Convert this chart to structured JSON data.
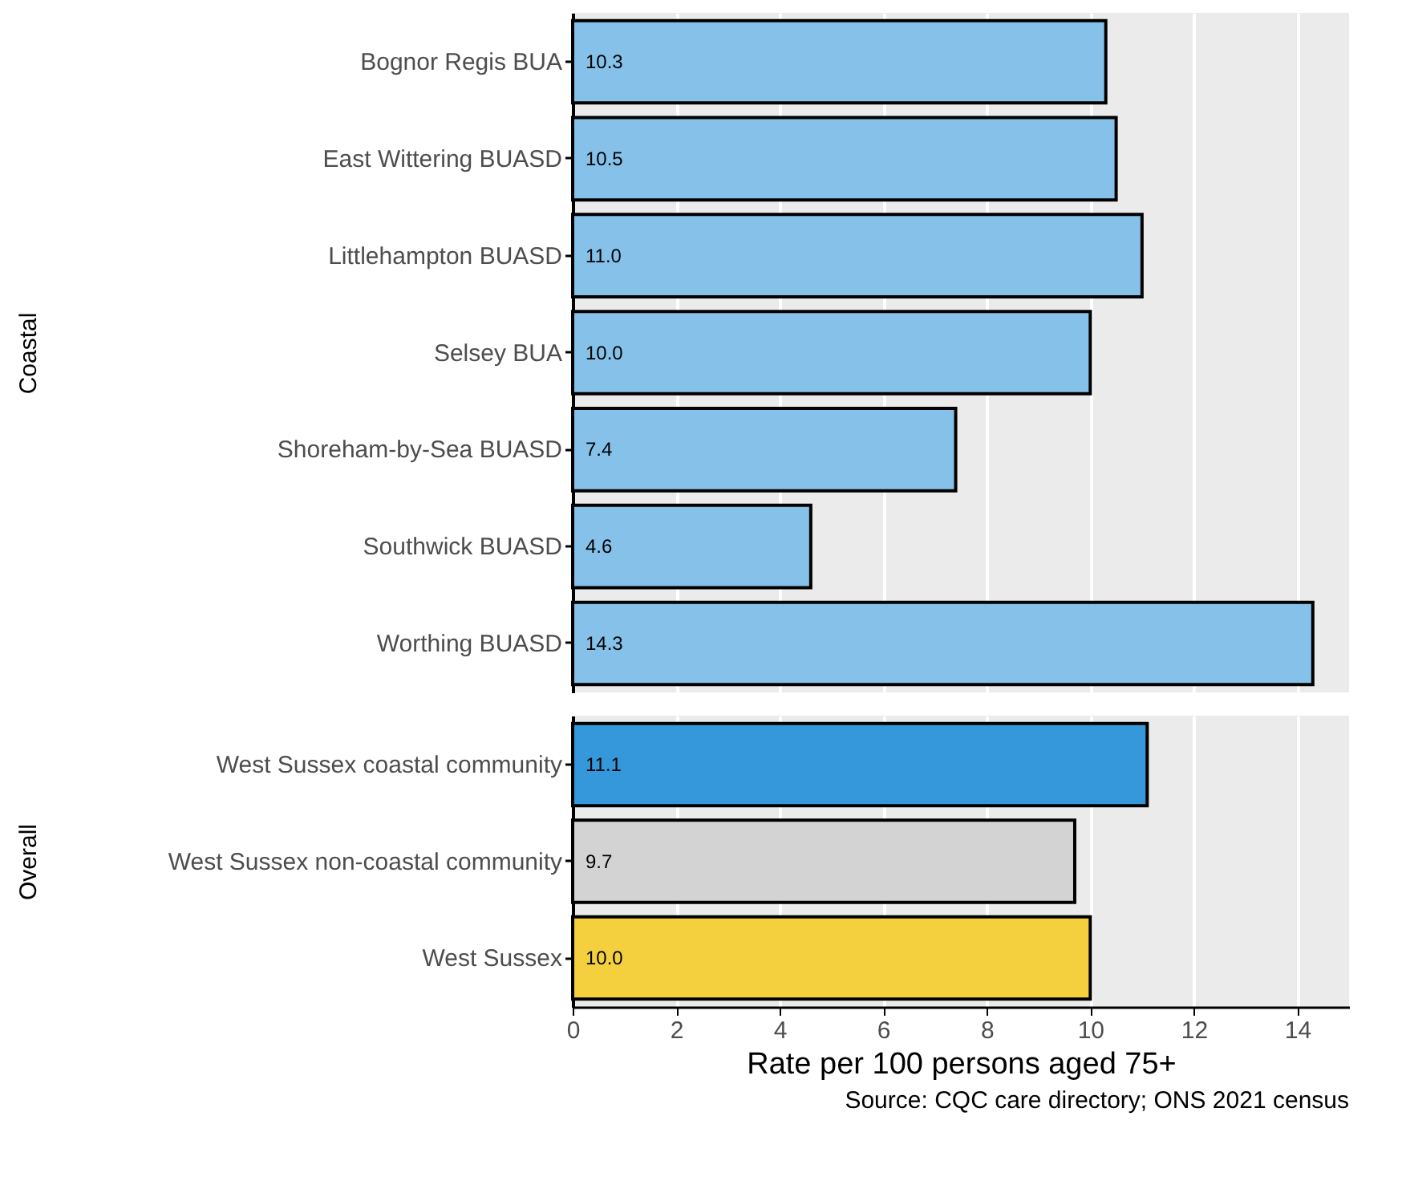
{
  "chart_data": [
    {
      "type": "bar",
      "orientation": "horizontal",
      "ylabel": "Coastal",
      "categories": [
        "Bognor Regis BUA",
        "East Wittering BUASD",
        "Littlehampton BUASD",
        "Selsey BUA",
        "Shoreham-by-Sea BUASD",
        "Southwick BUASD",
        "Worthing BUASD"
      ],
      "values": [
        10.3,
        10.5,
        11.0,
        10.0,
        7.4,
        4.6,
        14.3
      ],
      "value_labels": [
        "10.3",
        "10.5",
        "11.0",
        "10.0",
        "7.4",
        "4.6",
        "14.3"
      ],
      "color": "#85c1e9",
      "xlim": [
        0,
        15
      ],
      "xticks": [
        0,
        2,
        4,
        6,
        8,
        10,
        12,
        14
      ],
      "grid": "x",
      "tick_labels": "y"
    },
    {
      "type": "bar",
      "orientation": "horizontal",
      "ylabel": "Overall",
      "xlabel": "Rate per 100 persons aged 75+",
      "categories": [
        "West Sussex coastal community",
        "West Sussex non-coastal community",
        "West Sussex"
      ],
      "values": [
        11.1,
        9.7,
        10.0
      ],
      "value_labels": [
        "11.1",
        "9.7",
        "10.0"
      ],
      "colors": [
        "#3498db",
        "#d3d3d3",
        "#f4d03f"
      ],
      "xlim": [
        0,
        15
      ],
      "xticks": [
        0,
        2,
        4,
        6,
        8,
        10,
        12,
        14
      ],
      "grid": "x",
      "annotations": [
        "Source: CQC care directory; ONS 2021 census"
      ]
    }
  ]
}
